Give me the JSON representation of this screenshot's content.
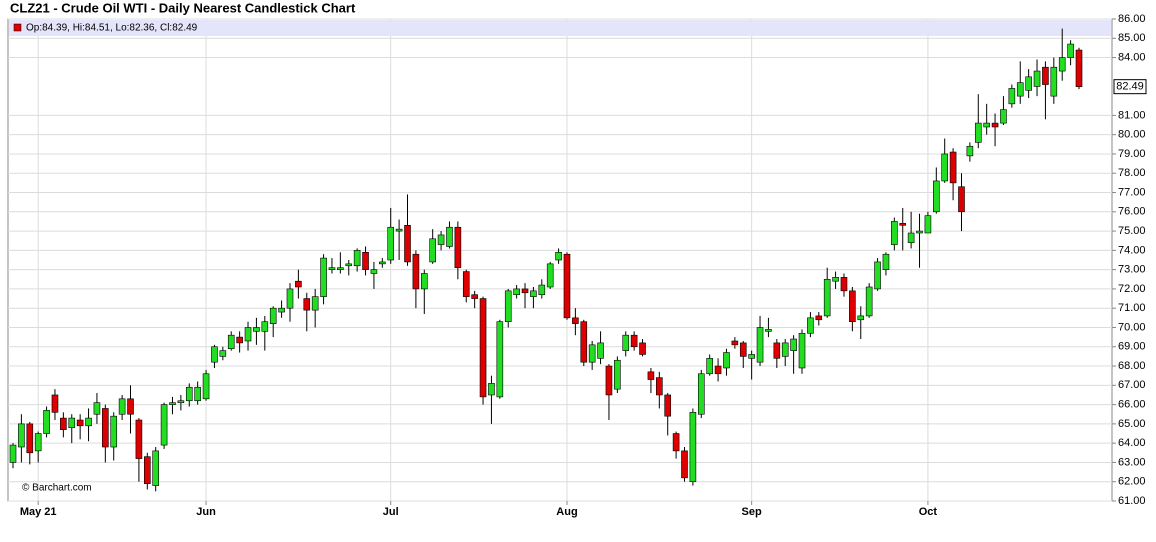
{
  "chart_data": {
    "type": "candlestick",
    "title": "CLZ21 - Crude Oil WTI - Daily Nearest Candlestick Chart",
    "ohlc_legend": "Op:84.39, Hi:84.51, Lo:82.36, Cl:82.49",
    "source": "© Barchart.com",
    "last_price_label": "82.49",
    "up_color": "#22dd22",
    "down_color": "#dd0000",
    "grid": true,
    "categories": [
      null,
      null,
      null,
      "May 21",
      null,
      null,
      null,
      null,
      null,
      null,
      null,
      null,
      null,
      null,
      null,
      null,
      null,
      null,
      null,
      null,
      null,
      null,
      null,
      "Jun",
      null,
      null,
      null,
      null,
      null,
      null,
      null,
      null,
      null,
      null,
      null,
      null,
      null,
      null,
      null,
      null,
      null,
      null,
      null,
      null,
      null,
      "Jul",
      null,
      null,
      null,
      null,
      null,
      null,
      null,
      null,
      null,
      null,
      null,
      null,
      null,
      null,
      null,
      null,
      null,
      null,
      null,
      null,
      "Aug",
      null,
      null,
      null,
      null,
      null,
      null,
      null,
      null,
      null,
      null,
      null,
      null,
      null,
      null,
      null,
      null,
      null,
      null,
      null,
      null,
      null,
      "Sep",
      null,
      null,
      null,
      null,
      null,
      null,
      null,
      null,
      null,
      null,
      null,
      null,
      null,
      null,
      null,
      null,
      null,
      null,
      null,
      null,
      "Oct",
      null,
      null,
      null,
      null,
      null,
      null,
      null,
      null,
      null,
      null,
      null,
      null,
      null,
      null,
      null,
      null,
      null,
      null
    ],
    "open": [
      63.0,
      63.8,
      65.0,
      63.6,
      64.5,
      66.5,
      65.3,
      64.8,
      65.2,
      64.9,
      65.5,
      65.8,
      63.8,
      65.5,
      66.3,
      65.2,
      63.3,
      61.8,
      63.9,
      66.0,
      66.1,
      66.2,
      66.2,
      66.3,
      68.2,
      68.5,
      68.9,
      69.5,
      69.3,
      69.8,
      69.8,
      70.2,
      70.8,
      71.0,
      72.4,
      71.5,
      70.9,
      71.6,
      73.0,
      73.0,
      73.2,
      73.2,
      73.9,
      72.8,
      73.3,
      73.5,
      75.0,
      75.3,
      73.8,
      72.0,
      73.4,
      74.3,
      74.2,
      75.2,
      72.9,
      71.7,
      71.5,
      66.5,
      66.4,
      70.3,
      71.7,
      72.0,
      71.6,
      71.7,
      72.1,
      73.5,
      73.8,
      70.5,
      70.3,
      68.2,
      68.4,
      68.0,
      66.8,
      68.8,
      69.6,
      69.2,
      67.7,
      67.4,
      66.5,
      64.5,
      63.6,
      62.0,
      65.5,
      67.6,
      68.0,
      67.9,
      69.3,
      69.2,
      68.4,
      68.2,
      69.8,
      69.2,
      68.5,
      68.8,
      67.9,
      69.7,
      70.6,
      70.6,
      72.4,
      72.6,
      71.9,
      70.4,
      70.6,
      72.0,
      73.0,
      74.3,
      75.4,
      74.4,
      74.9,
      74.9,
      76.0,
      77.6,
      79.1,
      77.3,
      78.9,
      79.6,
      80.4,
      80.6,
      80.6,
      81.6,
      82.0,
      82.3,
      82.5,
      83.5,
      82.0,
      83.3,
      84.0,
      84.39
    ],
    "high": [
      64.0,
      65.5,
      65.1,
      64.6,
      65.9,
      66.8,
      65.6,
      65.5,
      65.5,
      65.8,
      66.6,
      66.0,
      65.6,
      66.5,
      67.0,
      65.3,
      63.5,
      63.8,
      66.1,
      66.4,
      66.5,
      67.1,
      67.2,
      67.8,
      69.1,
      69.0,
      69.8,
      69.8,
      70.3,
      70.5,
      70.6,
      71.1,
      71.4,
      72.3,
      73.0,
      71.8,
      72.0,
      73.8,
      73.6,
      73.9,
      73.5,
      74.1,
      74.2,
      73.4,
      73.6,
      76.2,
      75.6,
      76.9,
      74.0,
      73.0,
      75.1,
      75.0,
      75.5,
      75.5,
      73.0,
      71.9,
      71.6,
      67.5,
      70.4,
      72.0,
      72.2,
      72.3,
      72.1,
      72.5,
      73.4,
      74.1,
      73.9,
      71.0,
      70.4,
      69.3,
      69.8,
      68.1,
      68.5,
      69.8,
      69.8,
      69.4,
      67.9,
      67.7,
      66.6,
      64.6,
      63.8,
      65.8,
      67.8,
      68.6,
      68.4,
      68.9,
      69.5,
      69.3,
      68.8,
      70.6,
      70.5,
      69.4,
      69.4,
      69.6,
      69.9,
      70.8,
      70.8,
      73.1,
      72.9,
      72.8,
      72.1,
      71.1,
      72.3,
      73.6,
      73.9,
      75.7,
      76.2,
      76.0,
      75.9,
      76.0,
      78.3,
      79.8,
      79.3,
      78.0,
      79.6,
      82.1,
      81.6,
      81.1,
      82.0,
      82.6,
      83.8,
      83.4,
      83.9,
      83.8,
      84.0,
      85.5,
      84.9,
      84.51
    ],
    "low": [
      62.7,
      63.0,
      62.9,
      63.0,
      64.3,
      65.2,
      64.3,
      64.0,
      64.2,
      64.1,
      65.0,
      63.0,
      63.1,
      65.2,
      64.5,
      62.0,
      61.6,
      61.5,
      63.7,
      65.5,
      65.7,
      65.9,
      66.0,
      66.2,
      67.9,
      68.3,
      68.8,
      68.7,
      68.8,
      69.1,
      68.8,
      69.5,
      70.5,
      70.3,
      71.5,
      69.8,
      70.0,
      71.2,
      72.8,
      72.8,
      72.7,
      72.9,
      72.7,
      72.0,
      73.1,
      73.3,
      73.5,
      73.2,
      71.0,
      70.7,
      73.3,
      74.0,
      74.1,
      72.5,
      71.3,
      71.0,
      66.0,
      65.0,
      66.3,
      70.0,
      71.5,
      71.0,
      71.0,
      71.5,
      72.0,
      73.3,
      70.4,
      69.6,
      68.0,
      67.8,
      68.1,
      65.2,
      66.6,
      68.5,
      68.8,
      68.5,
      66.6,
      65.8,
      64.4,
      63.2,
      62.0,
      61.8,
      65.3,
      67.5,
      67.2,
      67.5,
      68.9,
      67.9,
      67.3,
      68.0,
      69.5,
      67.9,
      68.0,
      67.6,
      67.6,
      69.5,
      70.1,
      70.5,
      72.0,
      71.6,
      69.8,
      69.4,
      70.5,
      71.9,
      72.7,
      74.0,
      74.0,
      74.1,
      73.1,
      74.9,
      75.9,
      77.5,
      76.6,
      75.0,
      78.6,
      79.3,
      80.0,
      79.4,
      80.5,
      81.4,
      81.6,
      81.9,
      82.0,
      80.8,
      81.6,
      82.8,
      83.6,
      82.36
    ],
    "close": [
      63.9,
      65.0,
      63.5,
      64.5,
      65.7,
      65.6,
      64.7,
      65.3,
      64.9,
      65.3,
      66.1,
      63.8,
      65.4,
      66.3,
      65.5,
      63.2,
      61.9,
      63.6,
      66.0,
      66.1,
      66.2,
      66.9,
      66.9,
      67.6,
      69.0,
      68.8,
      69.6,
      69.2,
      70.0,
      70.0,
      70.3,
      71.0,
      71.0,
      72.0,
      72.1,
      70.9,
      71.6,
      73.6,
      73.1,
      73.1,
      73.3,
      74.0,
      73.0,
      73.0,
      73.4,
      75.2,
      75.1,
      73.4,
      72.0,
      72.8,
      74.6,
      74.8,
      75.2,
      73.1,
      71.6,
      71.5,
      66.4,
      67.1,
      70.3,
      71.9,
      72.0,
      71.8,
      71.9,
      72.2,
      73.3,
      73.9,
      70.5,
      70.2,
      68.2,
      69.1,
      69.2,
      66.5,
      68.3,
      69.6,
      69.0,
      68.6,
      67.3,
      66.5,
      65.4,
      63.6,
      62.2,
      65.6,
      67.6,
      68.4,
      67.6,
      68.7,
      69.1,
      68.5,
      68.6,
      70.0,
      69.9,
      68.4,
      69.2,
      69.4,
      69.7,
      70.5,
      70.4,
      72.5,
      72.6,
      71.9,
      70.3,
      70.6,
      72.1,
      73.4,
      73.8,
      75.5,
      75.3,
      74.9,
      75.0,
      75.8,
      77.6,
      79.0,
      77.5,
      76.0,
      79.4,
      80.6,
      80.6,
      80.4,
      81.3,
      82.4,
      82.7,
      83.0,
      83.3,
      82.6,
      83.5,
      84.0,
      84.7,
      82.49
    ],
    "ylim": [
      61,
      86
    ],
    "yticks": [
      {
        "value": 61,
        "label": "61.00"
      },
      {
        "value": 62,
        "label": "62.00"
      },
      {
        "value": 63,
        "label": "63.00"
      },
      {
        "value": 64,
        "label": "64.00"
      },
      {
        "value": 65,
        "label": "65.00"
      },
      {
        "value": 66,
        "label": "66.00"
      },
      {
        "value": 67,
        "label": "67.00"
      },
      {
        "value": 68,
        "label": "68.00"
      },
      {
        "value": 69,
        "label": "69.00"
      },
      {
        "value": 70,
        "label": "70.00"
      },
      {
        "value": 71,
        "label": "71.00"
      },
      {
        "value": 72,
        "label": "72.00"
      },
      {
        "value": 73,
        "label": "73.00"
      },
      {
        "value": 74,
        "label": "74.00"
      },
      {
        "value": 75,
        "label": "75.00"
      },
      {
        "value": 76,
        "label": "76.00"
      },
      {
        "value": 77,
        "label": "77.00"
      },
      {
        "value": 78,
        "label": "78.00"
      },
      {
        "value": 79,
        "label": "79.00"
      },
      {
        "value": 80,
        "label": "80.00"
      },
      {
        "value": 81,
        "label": "81.00"
      },
      {
        "value": 84,
        "label": "84.00"
      },
      {
        "value": 85,
        "label": "85.00"
      },
      {
        "value": 86,
        "label": "86.00"
      }
    ]
  }
}
